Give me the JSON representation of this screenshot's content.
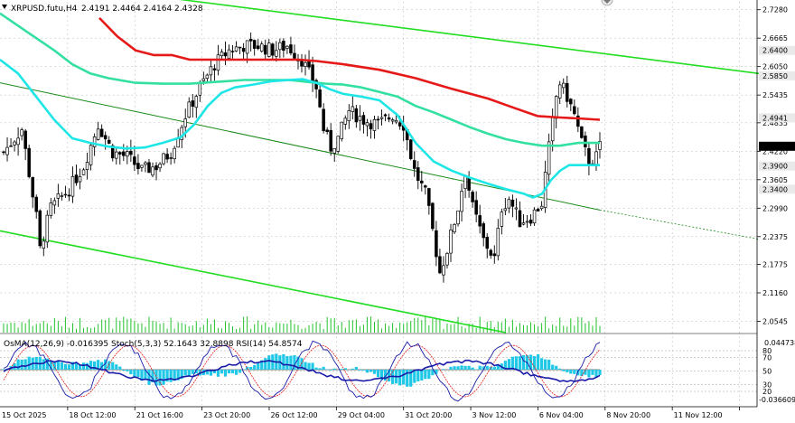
{
  "chart_data": {
    "type": "candlestick",
    "header": {
      "symbol": "XRPUSD.futu,H4",
      "ohlc": "2.4191 2.4464 2.4164 2.4328"
    },
    "price_axis": {
      "range": [
        2.03,
        2.745
      ],
      "ticks": [
        "2.7280",
        "2.6665",
        "2.6050",
        "2.5435",
        "2.4835",
        "2.4220",
        "2.3605",
        "2.2990",
        "2.2375",
        "2.1775",
        "2.1160",
        "2.0545"
      ]
    },
    "level_tags": [
      {
        "label": "2.6400",
        "value": 2.64,
        "color": "#e9e9e9",
        "text_color": "#000000"
      },
      {
        "label": "2.5850",
        "value": 2.585,
        "color": "#e9e9e9",
        "text_color": "#000000"
      },
      {
        "label": "2.4941",
        "value": 2.4941,
        "color": "#e9e9e9",
        "text_color": "#000000"
      },
      {
        "label": "2.4328",
        "value": 2.4328,
        "color": "#000000",
        "text_color": "#ffffff"
      },
      {
        "label": "2.3900",
        "value": 2.39,
        "color": "#e9e9e9",
        "text_color": "#000000"
      },
      {
        "label": "2.3400",
        "value": 2.34,
        "color": "#e9e9e9",
        "text_color": "#000000"
      }
    ],
    "level_values": [
      2.64,
      2.585,
      2.4941,
      2.4328,
      2.39,
      2.34
    ],
    "time_labels": [
      "15 Oct 2025",
      "18 Oct 12:00",
      "21 Oct 16:00",
      "23 Oct 20:00",
      "26 Oct 12:00",
      "29 Oct 04:00",
      "31 Oct 20:00",
      "3 Nov 12:00",
      "6 Nov 04:00",
      "8 Nov 20:00",
      "11 Nov 12:00"
    ],
    "candles": {
      "count": 165,
      "close_anchors": [
        [
          0,
          2.42
        ],
        [
          5,
          2.47
        ],
        [
          9,
          2.28
        ],
        [
          10,
          2.21
        ],
        [
          13,
          2.3
        ],
        [
          18,
          2.34
        ],
        [
          22,
          2.39
        ],
        [
          26,
          2.48
        ],
        [
          30,
          2.42
        ],
        [
          34,
          2.41
        ],
        [
          38,
          2.38
        ],
        [
          42,
          2.39
        ],
        [
          46,
          2.42
        ],
        [
          50,
          2.5
        ],
        [
          54,
          2.56
        ],
        [
          58,
          2.61
        ],
        [
          62,
          2.64
        ],
        [
          66,
          2.65
        ],
        [
          70,
          2.65
        ],
        [
          74,
          2.64
        ],
        [
          78,
          2.65
        ],
        [
          82,
          2.62
        ],
        [
          86,
          2.56
        ],
        [
          88,
          2.47
        ],
        [
          90,
          2.43
        ],
        [
          92,
          2.45
        ],
        [
          95,
          2.51
        ],
        [
          99,
          2.49
        ],
        [
          103,
          2.48
        ],
        [
          107,
          2.5
        ],
        [
          110,
          2.48
        ],
        [
          113,
          2.38
        ],
        [
          116,
          2.33
        ],
        [
          118,
          2.25
        ],
        [
          120,
          2.16
        ],
        [
          122,
          2.21
        ],
        [
          125,
          2.3
        ],
        [
          127,
          2.38
        ],
        [
          129,
          2.3
        ],
        [
          132,
          2.23
        ],
        [
          135,
          2.19
        ],
        [
          137,
          2.3
        ],
        [
          139,
          2.32
        ],
        [
          142,
          2.27
        ],
        [
          145,
          2.28
        ],
        [
          148,
          2.31
        ],
        [
          150,
          2.43
        ],
        [
          152,
          2.54
        ],
        [
          153,
          2.57
        ],
        [
          155,
          2.54
        ],
        [
          157,
          2.5
        ],
        [
          159,
          2.44
        ],
        [
          161,
          2.4
        ],
        [
          163,
          2.41
        ],
        [
          164,
          2.4328
        ]
      ],
      "color": "#000000"
    },
    "series": [
      {
        "name": "red",
        "color": "#e61919",
        "points": [
          [
            110,
            2.71
          ],
          [
            130,
            2.67
          ],
          [
            150,
            2.64
          ],
          [
            170,
            2.63
          ],
          [
            190,
            2.63
          ],
          [
            210,
            2.62
          ],
          [
            240,
            2.62
          ],
          [
            270,
            2.62
          ],
          [
            300,
            2.62
          ],
          [
            330,
            2.62
          ],
          [
            350,
            2.617
          ],
          [
            380,
            2.61
          ],
          [
            420,
            2.598
          ],
          [
            460,
            2.58
          ],
          [
            500,
            2.557
          ],
          [
            540,
            2.536
          ],
          [
            570,
            2.515
          ],
          [
            595,
            2.498
          ],
          [
            620,
            2.495
          ],
          [
            640,
            2.493
          ],
          [
            664,
            2.49
          ]
        ]
      },
      {
        "name": "green",
        "color": "#33e0a1",
        "points": [
          [
            0,
            2.72
          ],
          [
            30,
            2.68
          ],
          [
            60,
            2.64
          ],
          [
            80,
            2.61
          ],
          [
            100,
            2.59
          ],
          [
            120,
            2.58
          ],
          [
            150,
            2.57
          ],
          [
            180,
            2.568
          ],
          [
            210,
            2.568
          ],
          [
            240,
            2.572
          ],
          [
            270,
            2.576
          ],
          [
            300,
            2.576
          ],
          [
            320,
            2.576
          ],
          [
            340,
            2.572
          ],
          [
            360,
            2.568
          ],
          [
            380,
            2.566
          ],
          [
            400,
            2.56
          ],
          [
            420,
            2.55
          ],
          [
            440,
            2.54
          ],
          [
            460,
            2.52
          ],
          [
            480,
            2.506
          ],
          [
            500,
            2.49
          ],
          [
            520,
            2.474
          ],
          [
            540,
            2.46
          ],
          [
            560,
            2.448
          ],
          [
            580,
            2.44
          ],
          [
            600,
            2.434
          ],
          [
            620,
            2.434
          ],
          [
            640,
            2.44
          ],
          [
            664,
            2.44
          ]
        ]
      },
      {
        "name": "cyan",
        "color": "#1fe6e6",
        "points": [
          [
            0,
            2.62
          ],
          [
            20,
            2.59
          ],
          [
            40,
            2.54
          ],
          [
            60,
            2.49
          ],
          [
            80,
            2.45
          ],
          [
            100,
            2.44
          ],
          [
            120,
            2.432
          ],
          [
            140,
            2.428
          ],
          [
            160,
            2.43
          ],
          [
            180,
            2.44
          ],
          [
            200,
            2.452
          ],
          [
            215,
            2.48
          ],
          [
            230,
            2.52
          ],
          [
            245,
            2.548
          ],
          [
            260,
            2.56
          ],
          [
            280,
            2.566
          ],
          [
            300,
            2.573
          ],
          [
            320,
            2.576
          ],
          [
            335,
            2.578
          ],
          [
            350,
            2.57
          ],
          [
            365,
            2.556
          ],
          [
            380,
            2.546
          ],
          [
            400,
            2.54
          ],
          [
            420,
            2.532
          ],
          [
            440,
            2.5
          ],
          [
            460,
            2.44
          ],
          [
            480,
            2.4
          ],
          [
            500,
            2.38
          ],
          [
            520,
            2.365
          ],
          [
            540,
            2.352
          ],
          [
            560,
            2.34
          ],
          [
            580,
            2.33
          ],
          [
            590,
            2.322
          ],
          [
            600,
            2.33
          ],
          [
            610,
            2.36
          ],
          [
            620,
            2.38
          ],
          [
            630,
            2.392
          ],
          [
            645,
            2.392
          ],
          [
            664,
            2.392
          ]
        ]
      }
    ],
    "trendlines": [
      {
        "color": "#22dd22",
        "width": 1.6,
        "from": [
          0,
          2.8
        ],
        "to": [
          880,
          2.58
        ]
      },
      {
        "color": "#22dd22",
        "width": 1.6,
        "from": [
          0,
          2.25
        ],
        "to": [
          560,
          2.03
        ]
      },
      {
        "color": "#1a8a1a",
        "width": 1.0,
        "from": [
          0,
          2.57
        ],
        "to": [
          664,
          2.295
        ]
      },
      {
        "color": "#1a8a1a",
        "width": 0.8,
        "from": [
          664,
          2.295
        ],
        "to": [
          840,
          2.232
        ],
        "dotted": true
      }
    ],
    "indicator": {
      "label": "OsMA(12,26,9) -0.016395  Stoch(5,3,3) 52.1643 32.8898  RSI(14) 54.8574",
      "top_value": "0.044738",
      "bottom_value": "-0.036609",
      "scale_labels": [
        "80",
        "70",
        "50",
        "30",
        "20"
      ],
      "osma_color": "#1fc8e6",
      "stoch_main_color": "#1a1aa8",
      "stoch_signal_color": "#e61919",
      "rsi_color": "#1a1aa8"
    },
    "colors": {
      "background": "#ffffff",
      "grid": "#000000",
      "volume": "#22c22c"
    }
  }
}
